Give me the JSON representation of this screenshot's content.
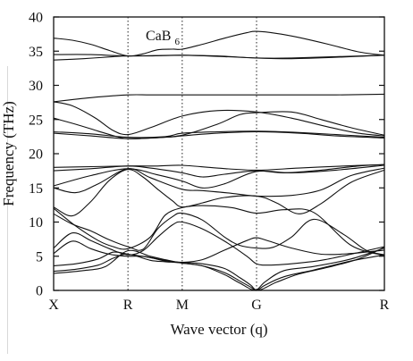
{
  "chart_data": {
    "type": "line",
    "title": "",
    "annotation_main": "CaB",
    "annotation_sub": "6",
    "xlabel": "Wave vector (q)",
    "ylabel": "Frequency (THz)",
    "ylim": [
      0,
      40
    ],
    "x_ticks": [
      {
        "label": "X",
        "pos": 0
      },
      {
        "label": "R",
        "pos": 1
      },
      {
        "label": "M",
        "pos": 1.73
      },
      {
        "label": "G",
        "pos": 2.73
      },
      {
        "label": "R",
        "pos": 4.45
      }
    ],
    "y_ticks": [
      0,
      5,
      10,
      15,
      20,
      25,
      30,
      35,
      40
    ],
    "grid": "dotted vertical lines at R, M, G",
    "line_color": "#111111",
    "series": [
      {
        "x": [
          0,
          0.25,
          0.5,
          0.75,
          1.0,
          1.2,
          1.4,
          1.6,
          1.73,
          2.0,
          2.3,
          2.6,
          2.73,
          3.0,
          3.3,
          3.7,
          4.1,
          4.45
        ],
        "values": [
          36.9,
          36.6,
          36.0,
          35.1,
          34.3,
          34.6,
          35.2,
          35.3,
          35.3,
          36.0,
          36.9,
          37.7,
          37.9,
          37.6,
          37.0,
          36.0,
          34.9,
          34.4
        ]
      },
      {
        "x": [
          0,
          0.5,
          1.0,
          1.73,
          2.3,
          2.73,
          3.2,
          3.8,
          4.45
        ],
        "values": [
          34.5,
          34.5,
          34.3,
          34.4,
          34.2,
          34.0,
          34.0,
          34.2,
          34.4
        ]
      },
      {
        "x": [
          0,
          0.4,
          0.8,
          1.0,
          1.3,
          1.73,
          2.2,
          2.73,
          3.2,
          3.8,
          4.45
        ],
        "values": [
          33.7,
          33.9,
          34.2,
          34.3,
          34.3,
          34.4,
          34.3,
          34.0,
          33.9,
          34.1,
          34.4
        ]
      },
      {
        "x": [
          0,
          0.5,
          1.0,
          1.3,
          1.73,
          2.2,
          2.73,
          3.2,
          3.8,
          4.45
        ],
        "values": [
          27.6,
          28.2,
          28.6,
          28.6,
          28.6,
          28.6,
          28.6,
          28.6,
          28.6,
          28.7
        ]
      },
      {
        "x": [
          0,
          0.25,
          0.55,
          0.8,
          1.0,
          1.3,
          1.73,
          2.2,
          2.73,
          3.2,
          3.7,
          4.1,
          4.45
        ],
        "values": [
          27.6,
          27.0,
          25.3,
          23.4,
          22.8,
          23.8,
          25.5,
          26.3,
          26.1,
          25.2,
          23.9,
          23.0,
          22.6
        ]
      },
      {
        "x": [
          0,
          0.3,
          0.6,
          0.85,
          1.0,
          1.3,
          1.73,
          2.2,
          2.5,
          2.73,
          3.2,
          3.6,
          4.0,
          4.45
        ],
        "values": [
          25.2,
          24.3,
          23.3,
          22.5,
          22.2,
          22.3,
          22.7,
          24.3,
          25.7,
          26.0,
          26.1,
          25.0,
          23.8,
          22.7
        ]
      },
      {
        "x": [
          0,
          0.5,
          1.0,
          1.5,
          1.73,
          2.2,
          2.73,
          3.3,
          3.8,
          4.45
        ],
        "values": [
          23.2,
          22.9,
          22.4,
          22.5,
          23.0,
          23.2,
          23.3,
          23.1,
          22.8,
          22.4
        ]
      },
      {
        "x": [
          0,
          0.5,
          1.0,
          1.5,
          1.73,
          2.2,
          2.73,
          3.3,
          3.8,
          4.45
        ],
        "values": [
          23.0,
          22.6,
          22.2,
          22.4,
          22.6,
          23.0,
          23.2,
          23.0,
          22.6,
          22.3
        ]
      },
      {
        "x": [
          0,
          0.5,
          1.0,
          1.4,
          1.73,
          2.2,
          2.73,
          3.3,
          3.9,
          4.45
        ],
        "values": [
          18.0,
          18.1,
          18.2,
          18.2,
          18.3,
          17.9,
          17.6,
          17.9,
          18.2,
          18.4
        ]
      },
      {
        "x": [
          0,
          0.5,
          1.0,
          1.3,
          1.73,
          2.0,
          2.3,
          2.73,
          3.1,
          3.6,
          4.1,
          4.45
        ],
        "values": [
          17.5,
          17.8,
          18.2,
          17.9,
          17.2,
          16.6,
          17.0,
          17.5,
          17.2,
          17.6,
          18.2,
          18.4
        ]
      },
      {
        "x": [
          0,
          0.5,
          1.0,
          1.4,
          1.73,
          2.0,
          2.3,
          2.73,
          3.2,
          3.8,
          4.45
        ],
        "values": [
          15.3,
          16.8,
          17.8,
          16.9,
          16.0,
          15.0,
          15.6,
          17.4,
          17.2,
          17.6,
          18.3
        ]
      },
      {
        "x": [
          0,
          0.3,
          0.6,
          1.0,
          1.3,
          1.73,
          2.0,
          2.4,
          2.73,
          3.2,
          3.6,
          4.0,
          4.45
        ],
        "values": [
          15.0,
          14.3,
          15.6,
          17.8,
          16.5,
          14.8,
          14.6,
          14.2,
          13.8,
          13.9,
          14.7,
          16.8,
          17.9
        ]
      },
      {
        "x": [
          0,
          0.25,
          0.5,
          0.75,
          1.0,
          1.2,
          1.4,
          1.6,
          1.73,
          2.0,
          2.3,
          2.73,
          3.0,
          3.3,
          3.6,
          4.0,
          4.45
        ],
        "values": [
          12.2,
          10.9,
          13.0,
          16.1,
          17.7,
          16.6,
          14.8,
          13.1,
          12.2,
          12.8,
          13.6,
          13.8,
          12.8,
          11.2,
          12.7,
          15.8,
          17.6
        ]
      },
      {
        "x": [
          0,
          0.3,
          0.6,
          0.8,
          1.0,
          1.3,
          1.5,
          1.73,
          2.0,
          2.4,
          2.73,
          3.1,
          3.5,
          4.0,
          4.45
        ],
        "values": [
          12.0,
          9.4,
          7.3,
          6.4,
          6.1,
          7.8,
          11.0,
          12.1,
          12.4,
          12.1,
          11.3,
          11.8,
          11.4,
          6.6,
          5.1
        ]
      },
      {
        "x": [
          0,
          0.25,
          0.5,
          0.75,
          1.0,
          1.2,
          1.4,
          1.6,
          1.73,
          2.0,
          2.3,
          2.5,
          2.73,
          2.95,
          3.2,
          3.5,
          3.9,
          4.2,
          4.45
        ],
        "values": [
          11.2,
          9.7,
          8.7,
          7.4,
          6.4,
          6.0,
          9.0,
          10.8,
          11.3,
          10.3,
          7.8,
          6.6,
          6.2,
          6.3,
          7.8,
          10.4,
          8.2,
          5.9,
          5.2
        ]
      },
      {
        "x": [
          0,
          0.25,
          0.5,
          0.75,
          1.0,
          1.2,
          1.4,
          1.6,
          1.73,
          2.0,
          2.3,
          2.6,
          2.73,
          2.9,
          3.2,
          3.6,
          4.0,
          4.45
        ],
        "values": [
          6.2,
          8.4,
          7.3,
          6.1,
          5.2,
          5.8,
          7.8,
          9.6,
          10.0,
          9.0,
          7.2,
          5.0,
          3.9,
          3.7,
          3.9,
          4.4,
          5.3,
          6.4
        ]
      },
      {
        "x": [
          0,
          0.25,
          0.5,
          0.75,
          1.0,
          1.2,
          1.4,
          1.6,
          1.73,
          2.0,
          2.3,
          2.6,
          2.73,
          2.9,
          3.2,
          3.6,
          4.0,
          4.45
        ],
        "values": [
          5.4,
          7.2,
          6.1,
          5.3,
          5.0,
          5.0,
          4.6,
          4.2,
          4.1,
          4.5,
          5.9,
          7.3,
          7.7,
          7.2,
          6.2,
          5.3,
          5.4,
          5.9
        ]
      },
      {
        "x": [
          0,
          0.3,
          0.6,
          0.8,
          1.0,
          1.3,
          1.5,
          1.73,
          2.0,
          2.3,
          2.5,
          2.65,
          2.73,
          2.85,
          3.1,
          3.5,
          4.0,
          4.45
        ],
        "values": [
          3.6,
          3.9,
          4.6,
          5.6,
          5.3,
          4.8,
          4.3,
          4.1,
          3.9,
          3.2,
          1.9,
          0.8,
          0.1,
          1.3,
          2.9,
          3.5,
          4.6,
          6.2
        ]
      },
      {
        "x": [
          0,
          0.3,
          0.6,
          0.8,
          1.0,
          1.3,
          1.5,
          1.73,
          2.0,
          2.3,
          2.5,
          2.65,
          2.73,
          2.85,
          3.1,
          3.5,
          4.0,
          4.45
        ],
        "values": [
          2.8,
          3.1,
          3.7,
          4.7,
          5.3,
          4.4,
          4.2,
          4.0,
          3.6,
          2.6,
          1.4,
          0.5,
          0.0,
          0.8,
          2.0,
          3.0,
          4.3,
          5.2
        ]
      },
      {
        "x": [
          0,
          0.4,
          0.7,
          1.0,
          1.3,
          1.5,
          1.73,
          2.0,
          2.3,
          2.5,
          2.73,
          3.0,
          3.3,
          3.7,
          4.1,
          4.45
        ],
        "values": [
          2.5,
          2.9,
          3.5,
          5.8,
          5.0,
          4.5,
          4.0,
          3.6,
          2.3,
          1.1,
          0.0,
          1.2,
          2.4,
          3.4,
          4.6,
          6.3
        ]
      }
    ]
  }
}
